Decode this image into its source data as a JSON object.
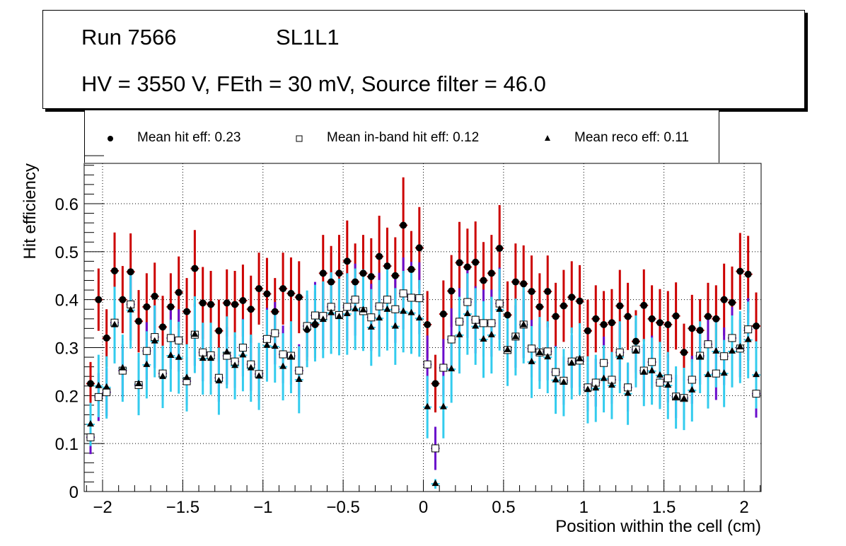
{
  "title_box": {
    "line1_run": "Run 7566",
    "line1_layer": "SL1L1",
    "line2": "HV = 3550 V, FEth = 30 mV, Source filter = 46.0"
  },
  "legend": [
    {
      "marker": "filled-circle",
      "label": "Mean hit  eff: 0.23"
    },
    {
      "marker": "open-square",
      "label": "Mean in-band hit eff: 0.12"
    },
    {
      "marker": "filled-triangle",
      "label": "Mean reco eff: 0.11"
    }
  ],
  "chart_data": {
    "type": "scatter",
    "title": "Run 7566  SL1L1  HV = 3550 V, FEth = 30 mV, Source filter = 46.0",
    "xlabel": "Position within the cell (cm)",
    "ylabel": "Hit efficiency",
    "xlim": [
      -2.1,
      2.1
    ],
    "ylim": [
      0,
      0.7
    ],
    "xticks": [
      -2,
      -1.5,
      -1,
      -0.5,
      0,
      0.5,
      1,
      1.5,
      2
    ],
    "xtick_labels": [
      "−2",
      "−1.5",
      "−1",
      "−0.5",
      "0",
      "0.5",
      "1",
      "1.5",
      "2"
    ],
    "yticks": [
      0,
      0.1,
      0.2,
      0.3,
      0.4,
      0.5,
      0.6
    ],
    "ytick_labels": [
      "0",
      "0.1",
      "0.2",
      "0.3",
      "0.4",
      "0.5",
      "0.6"
    ],
    "grid": true,
    "legend_position": "top",
    "x_start": -2.075,
    "x_step": 0.05,
    "n_bins": 84,
    "series": [
      {
        "name": "Mean hit  eff: 0.23",
        "marker": "filled-circle",
        "color": "#000000",
        "error_color": "#cc0000",
        "values": [
          0.225,
          0.4,
          0.32,
          0.46,
          0.4,
          0.458,
          0.355,
          0.385,
          0.407,
          0.343,
          0.385,
          0.415,
          0.375,
          0.465,
          0.393,
          0.39,
          0.335,
          0.393,
          0.39,
          0.398,
          0.38,
          0.423,
          0.412,
          0.375,
          0.423,
          0.413,
          0.405,
          0.338,
          0.348,
          0.455,
          0.437,
          0.455,
          0.48,
          0.437,
          0.455,
          0.448,
          0.49,
          0.47,
          0.45,
          0.555,
          0.463,
          0.508,
          0.348,
          0.225,
          0.37,
          0.418,
          0.477,
          0.468,
          0.478,
          0.44,
          0.455,
          0.507,
          0.368,
          0.437,
          0.433,
          0.417,
          0.385,
          0.417,
          0.365,
          0.387,
          0.405,
          0.397,
          0.335,
          0.36,
          0.348,
          0.352,
          0.387,
          0.365,
          0.313,
          0.388,
          0.36,
          0.352,
          0.348,
          0.366,
          0.29,
          0.34,
          0.336,
          0.365,
          0.36,
          0.4,
          0.394,
          0.459,
          0.453,
          0.345
        ],
        "errors": [
          0.045,
          0.065,
          0.06,
          0.08,
          0.07,
          0.08,
          0.065,
          0.07,
          0.07,
          0.065,
          0.07,
          0.075,
          0.07,
          0.08,
          0.075,
          0.07,
          0.065,
          0.07,
          0.07,
          0.075,
          0.07,
          0.075,
          0.075,
          0.07,
          0.075,
          0.075,
          0.075,
          0.065,
          0.07,
          0.08,
          0.075,
          0.08,
          0.085,
          0.08,
          0.08,
          0.08,
          0.085,
          0.08,
          0.08,
          0.1,
          0.08,
          0.085,
          0.07,
          0.06,
          0.07,
          0.075,
          0.085,
          0.08,
          0.085,
          0.08,
          0.08,
          0.09,
          0.07,
          0.08,
          0.08,
          0.075,
          0.07,
          0.075,
          0.07,
          0.075,
          0.075,
          0.075,
          0.065,
          0.07,
          0.07,
          0.07,
          0.075,
          0.07,
          0.065,
          0.075,
          0.07,
          0.07,
          0.07,
          0.07,
          0.06,
          0.07,
          0.065,
          0.07,
          0.07,
          0.075,
          0.075,
          0.08,
          0.08,
          0.07
        ]
      },
      {
        "name": "Mean in-band hit eff: 0.12",
        "marker": "open-square",
        "color": "#000000",
        "error_color": "#6a0dcc",
        "values": [
          0.113,
          0.197,
          0.207,
          0.352,
          0.252,
          0.39,
          0.222,
          0.293,
          0.322,
          0.246,
          0.32,
          0.315,
          0.23,
          0.327,
          0.29,
          0.284,
          0.237,
          0.283,
          0.271,
          0.3,
          0.265,
          0.245,
          0.318,
          0.33,
          0.286,
          0.283,
          0.252,
          0.345,
          0.367,
          0.366,
          0.385,
          0.368,
          0.385,
          0.4,
          0.376,
          0.363,
          0.386,
          0.4,
          0.38,
          0.413,
          0.404,
          0.403,
          0.265,
          0.09,
          0.258,
          0.317,
          0.354,
          0.395,
          0.358,
          0.351,
          0.351,
          0.392,
          0.295,
          0.323,
          0.348,
          0.298,
          0.29,
          0.292,
          0.249,
          0.231,
          0.271,
          0.273,
          0.217,
          0.227,
          0.268,
          0.233,
          0.29,
          0.217,
          0.296,
          0.252,
          0.27,
          0.227,
          0.236,
          0.198,
          0.195,
          0.233,
          0.283,
          0.307,
          0.246,
          0.282,
          0.32,
          0.298,
          0.338,
          0.204
        ],
        "errors": [
          0.035,
          0.05,
          0.05,
          0.07,
          0.055,
          0.075,
          0.05,
          0.06,
          0.065,
          0.055,
          0.065,
          0.065,
          0.05,
          0.065,
          0.06,
          0.06,
          0.05,
          0.06,
          0.055,
          0.06,
          0.055,
          0.055,
          0.065,
          0.065,
          0.06,
          0.06,
          0.055,
          0.065,
          0.07,
          0.07,
          0.07,
          0.07,
          0.07,
          0.075,
          0.07,
          0.07,
          0.07,
          0.075,
          0.07,
          0.075,
          0.075,
          0.075,
          0.06,
          0.045,
          0.06,
          0.065,
          0.07,
          0.075,
          0.07,
          0.07,
          0.07,
          0.075,
          0.06,
          0.065,
          0.07,
          0.06,
          0.06,
          0.06,
          0.055,
          0.05,
          0.055,
          0.055,
          0.05,
          0.05,
          0.055,
          0.05,
          0.06,
          0.05,
          0.06,
          0.055,
          0.055,
          0.05,
          0.05,
          0.045,
          0.045,
          0.05,
          0.06,
          0.06,
          0.055,
          0.06,
          0.065,
          0.06,
          0.065,
          0.05
        ]
      },
      {
        "name": "Mean reco eff: 0.11",
        "marker": "filled-triangle",
        "color": "#000000",
        "error_color": "#33ccee",
        "values": [
          0.14,
          0.22,
          0.217,
          0.347,
          0.257,
          0.378,
          0.224,
          0.264,
          0.313,
          0.239,
          0.283,
          0.279,
          0.237,
          0.327,
          0.277,
          0.277,
          0.23,
          0.29,
          0.262,
          0.284,
          0.257,
          0.24,
          0.304,
          0.302,
          0.26,
          0.28,
          0.233,
          0.339,
          0.351,
          0.358,
          0.372,
          0.364,
          0.37,
          0.38,
          0.378,
          0.342,
          0.361,
          0.379,
          0.344,
          0.375,
          0.372,
          0.361,
          0.176,
          0.016,
          0.176,
          0.255,
          0.326,
          0.37,
          0.344,
          0.317,
          0.326,
          0.379,
          0.295,
          0.322,
          0.347,
          0.27,
          0.289,
          0.28,
          0.232,
          0.227,
          0.267,
          0.276,
          0.212,
          0.215,
          0.235,
          0.221,
          0.28,
          0.204,
          0.292,
          0.248,
          0.251,
          0.242,
          0.221,
          0.196,
          0.193,
          0.211,
          0.28,
          0.243,
          0.292,
          0.246,
          0.292,
          0.301,
          0.316,
          0.243
        ],
        "errors": [
          0.045,
          0.065,
          0.065,
          0.08,
          0.07,
          0.08,
          0.065,
          0.07,
          0.075,
          0.065,
          0.075,
          0.075,
          0.07,
          0.08,
          0.075,
          0.075,
          0.07,
          0.075,
          0.07,
          0.075,
          0.07,
          0.07,
          0.075,
          0.075,
          0.07,
          0.075,
          0.07,
          0.08,
          0.08,
          0.08,
          0.085,
          0.08,
          0.085,
          0.085,
          0.085,
          0.08,
          0.08,
          0.085,
          0.08,
          0.085,
          0.085,
          0.08,
          0.065,
          0.01,
          0.065,
          0.07,
          0.08,
          0.085,
          0.08,
          0.08,
          0.08,
          0.085,
          0.075,
          0.08,
          0.08,
          0.075,
          0.075,
          0.075,
          0.07,
          0.07,
          0.075,
          0.075,
          0.07,
          0.07,
          0.07,
          0.07,
          0.075,
          0.065,
          0.075,
          0.07,
          0.07,
          0.07,
          0.07,
          0.065,
          0.065,
          0.065,
          0.075,
          0.07,
          0.075,
          0.07,
          0.075,
          0.075,
          0.08,
          0.07
        ]
      }
    ]
  }
}
